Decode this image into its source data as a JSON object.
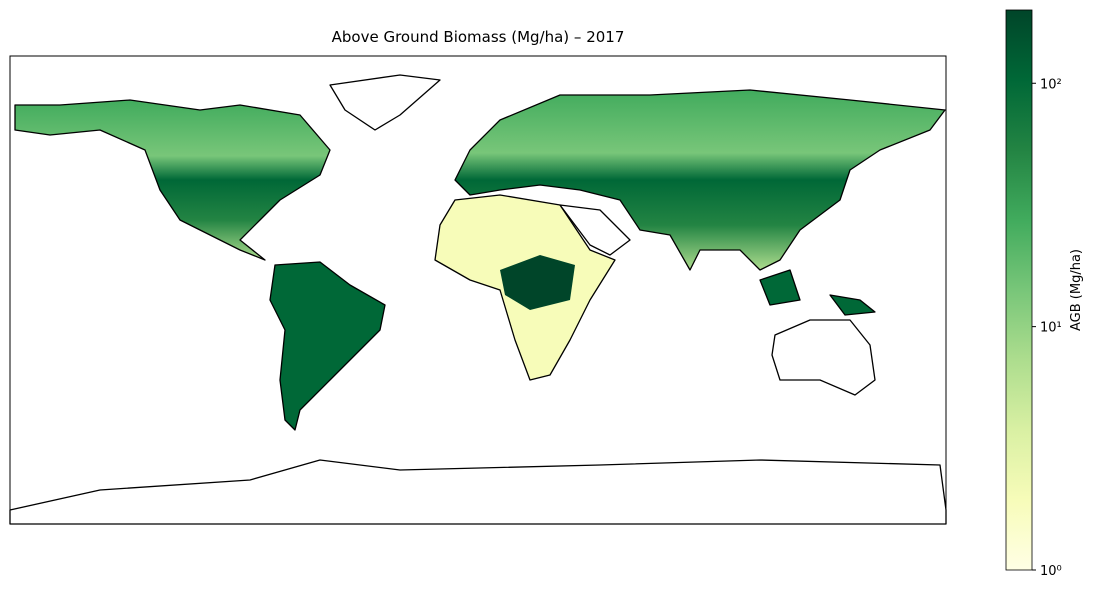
{
  "chart_data": {
    "type": "map",
    "title": "Above Ground Biomass (Mg/ha) – 2017",
    "colorbar": {
      "label": "AGB (Mg/ha)",
      "log_scale": true,
      "lim": [
        1,
        200
      ],
      "ticks": [
        {
          "value": 1,
          "label": "10⁰"
        },
        {
          "value": 10,
          "label": "10¹"
        },
        {
          "value": 100,
          "label": "10²"
        }
      ],
      "colors": [
        "#ffffe5",
        "#f7fcb9",
        "#d9f0a3",
        "#addd8e",
        "#78c679",
        "#41ab5d",
        "#238443",
        "#006837",
        "#004529"
      ]
    }
  }
}
